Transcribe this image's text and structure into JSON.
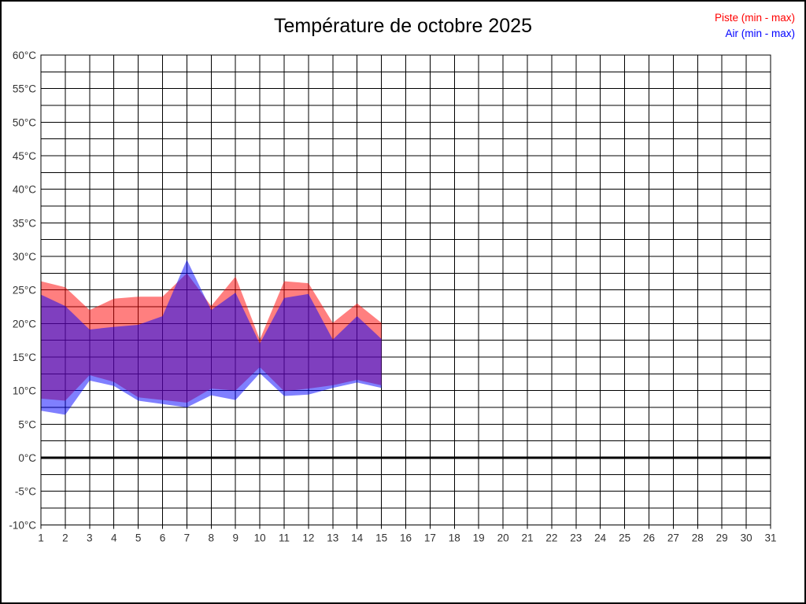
{
  "title": "Température de octobre 2025",
  "chart_data": {
    "type": "area",
    "title": "Température de octobre 2025",
    "subtitle": "",
    "legend_position": "top-right",
    "grid": "on",
    "y_axis": {
      "min": -10,
      "max": 60,
      "major_step": 5,
      "minor_step": 2.5,
      "unit": "°C",
      "zero_line": "thick",
      "tick_labels": [
        "60°C",
        "55°C",
        "50°C",
        "45°C",
        "40°C",
        "35°C",
        "30°C",
        "25°C",
        "20°C",
        "15°C",
        "10°C",
        "5°C",
        "0°C",
        "-5°C",
        "-10°C"
      ]
    },
    "x_axis": {
      "min": 1,
      "max": 31,
      "step": 1,
      "tick_labels": [
        "1",
        "2",
        "3",
        "4",
        "5",
        "6",
        "7",
        "8",
        "9",
        "10",
        "11",
        "12",
        "13",
        "14",
        "15",
        "16",
        "17",
        "18",
        "19",
        "20",
        "21",
        "22",
        "23",
        "24",
        "25",
        "26",
        "27",
        "28",
        "29",
        "30",
        "31"
      ]
    },
    "days": [
      1,
      2,
      3,
      4,
      5,
      6,
      7,
      8,
      9,
      10,
      11,
      12,
      13,
      14,
      15
    ],
    "series": [
      {
        "name": "Piste (min - max)",
        "color": "#ff0000",
        "max": [
          26.3,
          25.4,
          22.0,
          23.7,
          24.0,
          24.0,
          27.5,
          22.6,
          27.0,
          17.6,
          26.3,
          26.0,
          20.1,
          23.0,
          20.1
        ],
        "min": [
          8.8,
          8.5,
          12.3,
          11.3,
          9.0,
          8.6,
          8.2,
          10.3,
          10.0,
          13.5,
          9.9,
          10.3,
          10.8,
          11.6,
          10.8
        ]
      },
      {
        "name": "Air (min - max)",
        "color": "#0000ff",
        "max": [
          24.3,
          22.6,
          19.1,
          19.5,
          19.8,
          21.1,
          29.5,
          22.0,
          24.6,
          17.0,
          23.8,
          24.4,
          17.6,
          21.1,
          17.7
        ],
        "min": [
          7.0,
          6.4,
          11.5,
          10.7,
          8.5,
          8.0,
          7.5,
          9.3,
          8.6,
          12.6,
          9.2,
          9.4,
          10.4,
          11.2,
          10.4
        ]
      }
    ],
    "band_opacity": 0.5,
    "colors": {
      "grid": "#000000",
      "axis_text": "#333333",
      "title_text": "#000000",
      "zero_line": "#000000"
    }
  },
  "legend": {
    "piste_label": "Piste (min - max)",
    "air_label": "Air (min - max)"
  }
}
